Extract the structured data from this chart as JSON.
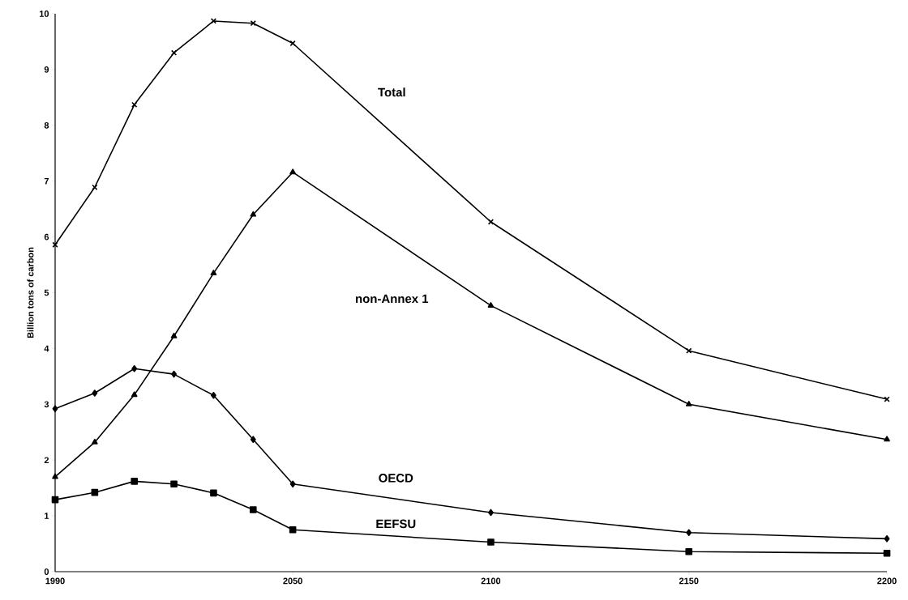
{
  "chart_data": {
    "type": "line",
    "ylabel": "Billion tons of carbon",
    "x": [
      1990,
      2000,
      2010,
      2020,
      2030,
      2040,
      2050,
      2100,
      2150,
      2200
    ],
    "xlim": [
      1990,
      2200
    ],
    "xticks": [
      1990,
      2050,
      2100,
      2150,
      2200
    ],
    "ylim": [
      0,
      10
    ],
    "yticks": [
      0,
      1,
      2,
      3,
      4,
      5,
      6,
      7,
      8,
      9,
      10
    ],
    "grid": false,
    "legend": false,
    "line_style": "solid",
    "series": [
      {
        "name": "Total",
        "color": "#000000",
        "marker": "cross",
        "values": [
          5.86,
          6.89,
          8.37,
          9.3,
          9.87,
          9.83,
          9.47,
          6.27,
          3.96,
          3.09
        ]
      },
      {
        "name": "non-Annex 1",
        "color": "#000000",
        "marker": "triangle",
        "values": [
          1.7,
          2.32,
          3.17,
          4.22,
          5.35,
          6.4,
          7.16,
          4.77,
          3.0,
          2.37
        ]
      },
      {
        "name": "OECD",
        "color": "#000000",
        "marker": "diamond",
        "values": [
          2.92,
          3.2,
          3.64,
          3.54,
          3.16,
          2.37,
          1.57,
          1.06,
          0.7,
          0.59
        ]
      },
      {
        "name": "EEFSU",
        "color": "#000000",
        "marker": "square",
        "values": [
          1.29,
          1.42,
          1.62,
          1.57,
          1.41,
          1.11,
          0.75,
          0.53,
          0.36,
          0.33
        ]
      }
    ]
  }
}
